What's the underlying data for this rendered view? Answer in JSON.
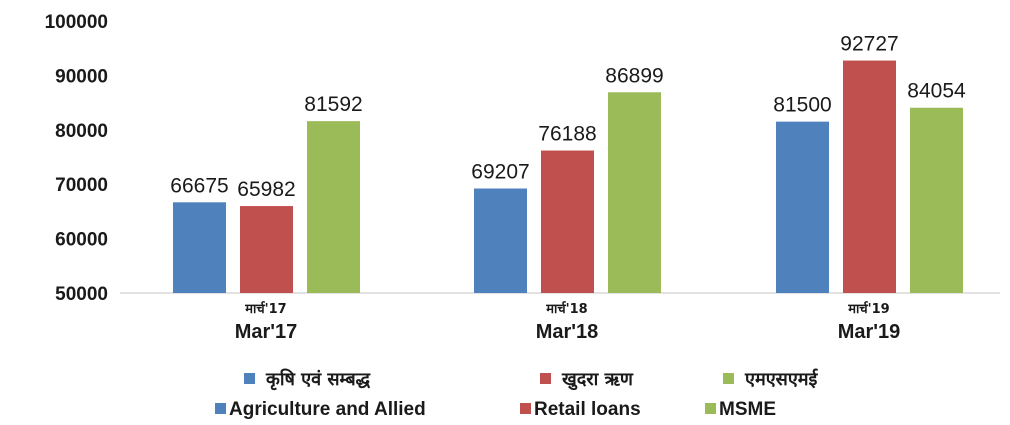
{
  "chart_data": {
    "type": "bar",
    "categories": [
      "Mar'17",
      "Mar'18",
      "Mar'19"
    ],
    "categories_hindi": [
      "मार्च'17",
      "मार्च'18",
      "मार्च'19"
    ],
    "series": [
      {
        "name": "Agriculture and Allied",
        "name_hindi": "कृषि एवं सम्बद्ध",
        "color": "#4f81bd",
        "values": [
          66675,
          69207,
          81500
        ]
      },
      {
        "name": "Retail loans",
        "name_hindi": "खुदरा ऋण",
        "color": "#c0504d",
        "values": [
          65982,
          76188,
          92727
        ]
      },
      {
        "name": "MSME",
        "name_hindi": "एमएसएमई",
        "color": "#9bbb59",
        "values": [
          81592,
          86899,
          84054
        ]
      }
    ],
    "yticks": [
      "100000",
      "90000",
      "80000",
      "70000",
      "60000",
      "50000"
    ],
    "ylim": [
      50000,
      100000
    ],
    "grid": false,
    "legend": "bottom"
  }
}
